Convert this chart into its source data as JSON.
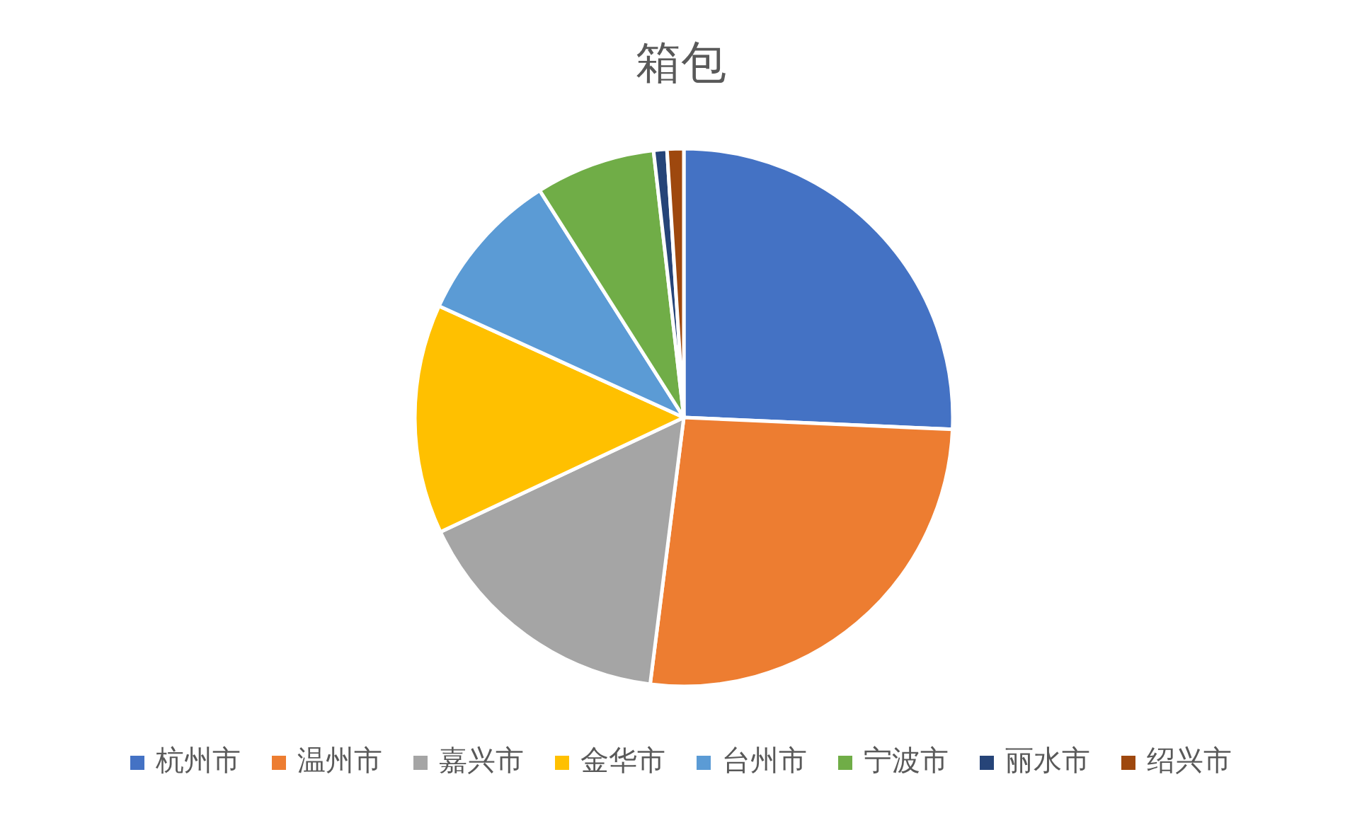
{
  "chart_data": {
    "type": "pie",
    "title": "箱包",
    "categories": [
      "杭州市",
      "温州市",
      "嘉兴市",
      "金华市",
      "台州市",
      "宁波市",
      "丽水市",
      "绍兴市"
    ],
    "values": [
      25.7,
      26.3,
      16,
      13.8,
      9.2,
      7.2,
      0.8,
      1.0
    ],
    "colors": [
      "#4472c4",
      "#ed7d31",
      "#a5a5a5",
      "#ffc000",
      "#5b9bd5",
      "#70ad47",
      "#264478",
      "#9e480e"
    ],
    "legend": "bottom"
  }
}
